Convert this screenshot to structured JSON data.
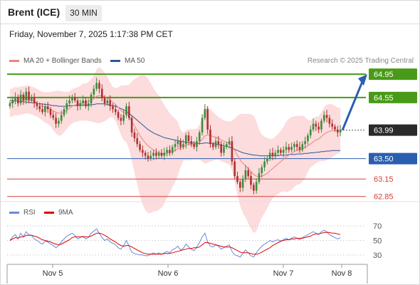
{
  "header": {
    "instrument": "Brent (ICE)",
    "timeframe": "30 MIN",
    "datetime": "Friday, November 7, 2025 1:17:38 PM CET"
  },
  "legend": {
    "items": [
      {
        "label": "MA 20 + Bollinger Bands",
        "color": "#f08080"
      },
      {
        "label": "MA 50",
        "color": "#2a5a9a"
      }
    ],
    "copyright": "Research © 2025 Trading Central"
  },
  "colors": {
    "up": "#3c8c3c",
    "down": "#b03030",
    "band": "#fbd6d6",
    "ma20": "#f08080",
    "ma50": "#2a5a9a",
    "resistance": "#4a9a1a",
    "pivot": "#2a5fb0",
    "support": "#d04040",
    "current": "#2a2a2a",
    "rsi": "#6a8ad8",
    "rsi_ma": "#dd0000"
  },
  "chart_data": [
    {
      "type": "candlestick",
      "title": "Brent (ICE)",
      "ylim": [
        62.7,
        65.05
      ],
      "x_ticks": [
        "Nov 5",
        "Nov 6",
        "Nov 7",
        "Nov 8"
      ],
      "last_price": 63.99,
      "levels": [
        {
          "label": "64.95",
          "value": 64.95,
          "kind": "resistance"
        },
        {
          "label": "64.55",
          "value": 64.55,
          "kind": "resistance"
        },
        {
          "label": "63.99",
          "value": 63.99,
          "kind": "current"
        },
        {
          "label": "63.50",
          "value": 63.5,
          "kind": "pivot"
        },
        {
          "label": "63.15",
          "value": 63.15,
          "kind": "support"
        },
        {
          "label": "62.85",
          "value": 62.85,
          "kind": "support"
        }
      ],
      "closes": [
        64.45,
        64.5,
        64.55,
        64.45,
        64.6,
        64.5,
        64.65,
        64.5,
        64.55,
        64.45,
        64.4,
        64.35,
        64.3,
        64.4,
        64.35,
        64.25,
        64.2,
        64.1,
        64.15,
        64.25,
        64.35,
        64.45,
        64.5,
        64.55,
        64.5,
        64.4,
        64.45,
        64.5,
        64.4,
        64.45,
        64.6,
        64.7,
        64.8,
        64.7,
        64.55,
        64.45,
        64.5,
        64.4,
        64.35,
        64.3,
        64.2,
        64.15,
        64.25,
        64.4,
        64.2,
        63.95,
        63.85,
        63.75,
        63.65,
        63.6,
        63.55,
        63.5,
        63.55,
        63.6,
        63.55,
        63.6,
        63.55,
        63.6,
        63.65,
        63.6,
        63.7,
        63.75,
        63.8,
        63.7,
        63.75,
        63.9,
        63.8,
        63.75,
        63.7,
        63.8,
        63.95,
        64.2,
        64.35,
        64.0,
        63.75,
        63.7,
        63.8,
        63.75,
        63.6,
        63.7,
        63.75,
        63.8,
        63.45,
        63.2,
        63.1,
        63.0,
        63.15,
        63.3,
        63.2,
        63.05,
        62.95,
        63.1,
        63.25,
        63.35,
        63.45,
        63.5,
        63.6,
        63.55,
        63.6,
        63.65,
        63.6,
        63.65,
        63.7,
        63.65,
        63.7,
        63.75,
        63.7,
        63.65,
        63.75,
        63.8,
        63.9,
        64.0,
        64.1,
        64.05,
        64.0,
        64.15,
        64.25,
        64.2,
        64.1,
        64.05,
        64.0,
        63.95,
        63.99
      ],
      "ma20": [
        64.45,
        64.47,
        64.49,
        64.48,
        64.5,
        64.5,
        64.52,
        64.51,
        64.5,
        64.48,
        64.46,
        64.43,
        64.4,
        64.38,
        64.37,
        64.35,
        64.32,
        64.3,
        64.28,
        64.28,
        64.3,
        64.33,
        64.36,
        64.4,
        64.42,
        64.43,
        64.45,
        64.47,
        64.47,
        64.48,
        64.5,
        64.53,
        64.57,
        64.59,
        64.58,
        64.56,
        64.54,
        64.51,
        64.47,
        64.43,
        64.38,
        64.33,
        64.29,
        64.27,
        64.22,
        64.14,
        64.06,
        63.98,
        63.9,
        63.83,
        63.77,
        63.72,
        63.68,
        63.65,
        63.62,
        63.6,
        63.58,
        63.58,
        63.59,
        63.6,
        63.62,
        63.64,
        63.67,
        63.68,
        63.7,
        63.73,
        63.74,
        63.74,
        63.74,
        63.75,
        63.78,
        63.83,
        63.89,
        63.91,
        63.9,
        63.88,
        63.87,
        63.85,
        63.82,
        63.8,
        63.78,
        63.77,
        63.72,
        63.64,
        63.56,
        63.48,
        63.42,
        63.38,
        63.33,
        63.28,
        63.23,
        63.2,
        63.19,
        63.2,
        63.22,
        63.25,
        63.29,
        63.33,
        63.37,
        63.41,
        63.45,
        63.49,
        63.53,
        63.56,
        63.59,
        63.62,
        63.64,
        63.65,
        63.67,
        63.69,
        63.72,
        63.75,
        63.79,
        63.82,
        63.84,
        63.88,
        63.92,
        63.95,
        63.97,
        63.98,
        63.98,
        63.98,
        63.99
      ],
      "ma50": [
        64.5,
        64.5,
        64.49,
        64.49,
        64.48,
        64.48,
        64.47,
        64.47,
        64.46,
        64.46,
        64.45,
        64.44,
        64.44,
        64.43,
        64.43,
        64.42,
        64.41,
        64.41,
        64.4,
        64.4,
        64.4,
        64.4,
        64.41,
        64.41,
        64.41,
        64.42,
        64.42,
        64.42,
        64.42,
        64.42,
        64.43,
        64.43,
        64.44,
        64.44,
        64.44,
        64.44,
        64.43,
        64.42,
        64.41,
        64.4,
        64.38,
        64.36,
        64.34,
        64.31,
        64.28,
        64.24,
        64.2,
        64.16,
        64.12,
        64.08,
        64.04,
        64.0,
        63.97,
        63.94,
        63.92,
        63.9,
        63.88,
        63.86,
        63.85,
        63.84,
        63.83,
        63.82,
        63.81,
        63.8,
        63.79,
        63.78,
        63.78,
        63.77,
        63.77,
        63.76,
        63.76,
        63.76,
        63.77,
        63.77,
        63.76,
        63.76,
        63.75,
        63.74,
        63.73,
        63.72,
        63.71,
        63.7,
        63.68,
        63.66,
        63.64,
        63.62,
        63.6,
        63.59,
        63.58,
        63.57,
        63.56,
        63.56,
        63.55,
        63.55,
        63.55,
        63.55,
        63.55,
        63.55,
        63.55,
        63.55,
        63.56,
        63.56,
        63.56,
        63.57,
        63.57,
        63.57,
        63.58,
        63.58,
        63.58,
        63.59,
        63.59,
        63.6,
        63.6,
        63.61,
        63.61,
        63.62,
        63.62,
        63.63,
        63.63,
        63.64,
        63.64,
        63.64,
        63.64
      ]
    },
    {
      "type": "line",
      "title": "RSI",
      "ylim": [
        22,
        75
      ],
      "y_ticks": [
        "70",
        "50",
        "30"
      ],
      "series": [
        {
          "name": "RSI",
          "values": [
            50,
            55,
            58,
            52,
            60,
            55,
            62,
            58,
            57,
            52,
            50,
            47,
            45,
            49,
            48,
            45,
            43,
            40,
            43,
            48,
            52,
            56,
            58,
            60,
            57,
            52,
            54,
            56,
            52,
            54,
            60,
            63,
            66,
            60,
            54,
            50,
            52,
            48,
            46,
            44,
            40,
            38,
            43,
            50,
            42,
            34,
            32,
            31,
            30,
            30,
            29,
            29,
            31,
            33,
            31,
            33,
            31,
            33,
            35,
            33,
            37,
            39,
            42,
            37,
            39,
            45,
            41,
            38,
            36,
            41,
            47,
            55,
            60,
            48,
            42,
            41,
            44,
            42,
            38,
            40,
            42,
            44,
            35,
            30,
            29,
            27,
            32,
            37,
            33,
            29,
            27,
            33,
            38,
            42,
            45,
            47,
            50,
            48,
            50,
            51,
            49,
            51,
            53,
            51,
            53,
            55,
            53,
            51,
            54,
            56,
            58,
            60,
            62,
            60,
            58,
            62,
            64,
            62,
            58,
            56,
            54,
            52,
            54
          ]
        },
        {
          "name": "9MA",
          "values": [
            50,
            52,
            54,
            53,
            55,
            55,
            57,
            57,
            57,
            56,
            55,
            53,
            51,
            50,
            49,
            48,
            46,
            45,
            44,
            45,
            47,
            49,
            51,
            54,
            55,
            55,
            55,
            55,
            55,
            55,
            56,
            58,
            60,
            60,
            59,
            57,
            55,
            52,
            50,
            48,
            45,
            43,
            42,
            43,
            43,
            41,
            39,
            37,
            35,
            33,
            32,
            31,
            31,
            31,
            31,
            31,
            31,
            32,
            32,
            32,
            33,
            34,
            35,
            36,
            37,
            38,
            39,
            39,
            40,
            40,
            41,
            44,
            47,
            47,
            46,
            45,
            44,
            43,
            42,
            41,
            41,
            41,
            40,
            38,
            36,
            34,
            33,
            33,
            33,
            32,
            31,
            31,
            32,
            34,
            36,
            38,
            40,
            43,
            45,
            47,
            49,
            50,
            51,
            51,
            52,
            52,
            53,
            53,
            53,
            54,
            55,
            56,
            58,
            59,
            59,
            60,
            61,
            61,
            61,
            60,
            60,
            59,
            58
          ]
        }
      ]
    }
  ],
  "rsi_legend": [
    {
      "label": "RSI",
      "color": "#6a8ad8"
    },
    {
      "label": "9MA",
      "color": "#dd0000"
    }
  ]
}
